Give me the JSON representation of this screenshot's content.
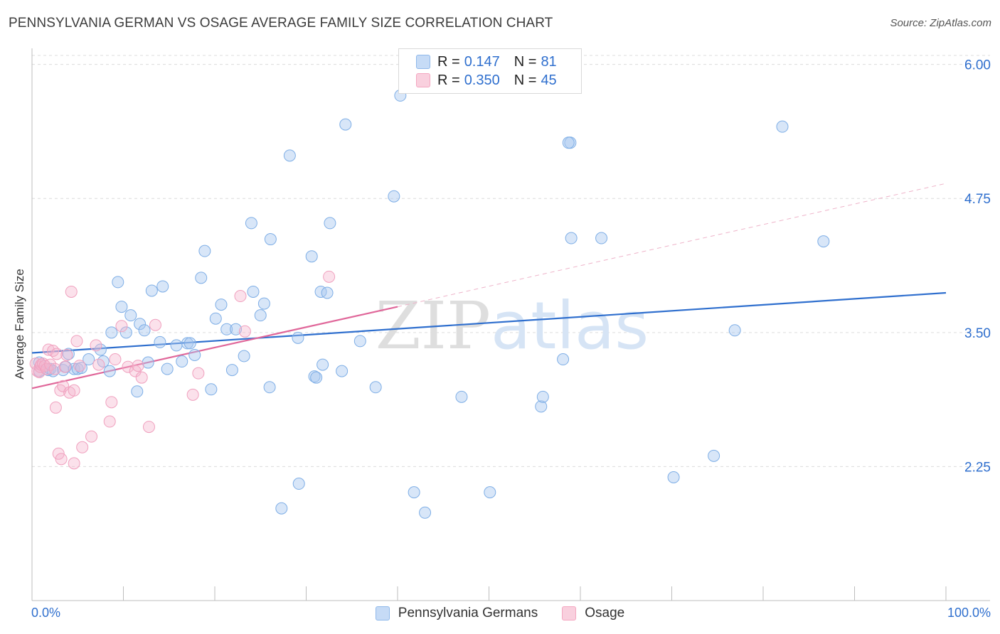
{
  "title": "PENNSYLVANIA GERMAN VS OSAGE AVERAGE FAMILY SIZE CORRELATION CHART",
  "source": "Source: ZipAtlas.com",
  "watermark": "ZIPatlas",
  "legend": {
    "series1": {
      "r_label": "R =",
      "r_value": "0.147",
      "n_label": "N =",
      "n_value": "81"
    },
    "series2": {
      "r_label": "R =",
      "r_value": "0.350",
      "n_label": "N =",
      "n_value": "45"
    }
  },
  "colors": {
    "blue": "#8fb8ea",
    "blue_line": "#2f6fce",
    "pink": "#f4a6c0",
    "pink_line": "#e0679a",
    "axis_text": "#2f6fce"
  },
  "chart_data": {
    "type": "scatter",
    "title": "PENNSYLVANIA GERMAN VS OSAGE AVERAGE FAMILY SIZE CORRELATION CHART",
    "xlabel": "",
    "ylabel": "Average Family Size",
    "xlim": [
      0,
      100
    ],
    "ylim": [
      1.0,
      6.15
    ],
    "x_tick_labels": [
      "0.0%",
      "100.0%"
    ],
    "y_ticks": [
      2.25,
      3.5,
      4.75,
      6.0
    ],
    "y_tick_labels": [
      "2.25",
      "3.50",
      "4.75",
      "6.00"
    ],
    "legend_position": "bottom",
    "series": [
      {
        "name": "Pennsylvania Germans",
        "color": "#8fb8ea",
        "points": [
          [
            0.8,
            3.22
          ],
          [
            0.8,
            3.14
          ],
          [
            1.8,
            3.15
          ],
          [
            2.0,
            3.16
          ],
          [
            2.3,
            3.14
          ],
          [
            3.4,
            3.15
          ],
          [
            3.7,
            3.18
          ],
          [
            4.0,
            3.3
          ],
          [
            4.6,
            3.16
          ],
          [
            5.0,
            3.16
          ],
          [
            5.4,
            3.17
          ],
          [
            6.2,
            3.25
          ],
          [
            7.5,
            3.34
          ],
          [
            7.8,
            3.23
          ],
          [
            8.5,
            3.14
          ],
          [
            8.7,
            3.5
          ],
          [
            9.4,
            3.97
          ],
          [
            9.8,
            3.74
          ],
          [
            10.3,
            3.5
          ],
          [
            10.8,
            3.66
          ],
          [
            11.5,
            2.95
          ],
          [
            11.8,
            3.58
          ],
          [
            12.3,
            3.52
          ],
          [
            12.7,
            3.22
          ],
          [
            13.1,
            3.89
          ],
          [
            14.0,
            3.41
          ],
          [
            14.3,
            3.93
          ],
          [
            14.8,
            3.16
          ],
          [
            15.8,
            3.38
          ],
          [
            16.4,
            3.23
          ],
          [
            17.0,
            3.4
          ],
          [
            17.3,
            3.4
          ],
          [
            17.8,
            3.29
          ],
          [
            18.5,
            4.01
          ],
          [
            18.9,
            4.26
          ],
          [
            19.6,
            2.97
          ],
          [
            20.1,
            3.63
          ],
          [
            20.7,
            3.76
          ],
          [
            21.3,
            3.53
          ],
          [
            21.9,
            3.15
          ],
          [
            22.3,
            3.53
          ],
          [
            23.2,
            3.28
          ],
          [
            24.0,
            4.52
          ],
          [
            24.2,
            3.88
          ],
          [
            25.0,
            3.66
          ],
          [
            25.4,
            3.77
          ],
          [
            26.1,
            4.37
          ],
          [
            26.0,
            2.99
          ],
          [
            27.3,
            1.86
          ],
          [
            28.2,
            5.15
          ],
          [
            29.1,
            3.45
          ],
          [
            29.2,
            2.09
          ],
          [
            30.6,
            4.21
          ],
          [
            30.9,
            3.09
          ],
          [
            31.1,
            3.08
          ],
          [
            31.6,
            3.88
          ],
          [
            31.8,
            3.2
          ],
          [
            32.3,
            3.87
          ],
          [
            32.6,
            4.52
          ],
          [
            33.9,
            3.14
          ],
          [
            34.3,
            5.44
          ],
          [
            35.9,
            3.42
          ],
          [
            37.6,
            2.99
          ],
          [
            39.6,
            4.77
          ],
          [
            40.3,
            5.71
          ],
          [
            41.8,
            2.01
          ],
          [
            43.0,
            1.82
          ],
          [
            47.0,
            2.9
          ],
          [
            50.1,
            2.01
          ],
          [
            55.7,
            2.81
          ],
          [
            55.9,
            2.9
          ],
          [
            58.1,
            3.25
          ],
          [
            58.9,
            5.27
          ],
          [
            58.7,
            5.27
          ],
          [
            59.0,
            4.38
          ],
          [
            62.3,
            4.38
          ],
          [
            70.2,
            2.15
          ],
          [
            74.6,
            2.35
          ],
          [
            76.9,
            3.52
          ],
          [
            82.1,
            5.42
          ],
          [
            86.6,
            4.35
          ]
        ],
        "trend": {
          "x": [
            0,
            100
          ],
          "y": [
            3.31,
            3.87
          ]
        }
      },
      {
        "name": "Osage",
        "color": "#f4a6c0",
        "points": [
          [
            0.4,
            3.21
          ],
          [
            0.6,
            3.14
          ],
          [
            0.8,
            3.13
          ],
          [
            0.9,
            3.18
          ],
          [
            1.0,
            3.2
          ],
          [
            1.2,
            3.21
          ],
          [
            1.4,
            3.19
          ],
          [
            1.6,
            3.16
          ],
          [
            1.8,
            3.34
          ],
          [
            2.0,
            3.2
          ],
          [
            2.3,
            3.33
          ],
          [
            2.5,
            3.16
          ],
          [
            2.7,
            3.3
          ],
          [
            2.6,
            2.8
          ],
          [
            2.9,
            2.37
          ],
          [
            3.1,
            2.96
          ],
          [
            3.2,
            2.32
          ],
          [
            3.4,
            3.0
          ],
          [
            3.6,
            3.18
          ],
          [
            3.8,
            3.29
          ],
          [
            4.1,
            2.94
          ],
          [
            4.3,
            3.88
          ],
          [
            4.6,
            2.28
          ],
          [
            4.6,
            2.96
          ],
          [
            4.9,
            3.42
          ],
          [
            5.2,
            3.19
          ],
          [
            5.5,
            2.43
          ],
          [
            6.5,
            2.53
          ],
          [
            7.0,
            3.38
          ],
          [
            7.3,
            3.2
          ],
          [
            8.5,
            2.67
          ],
          [
            8.7,
            2.85
          ],
          [
            9.1,
            3.25
          ],
          [
            9.8,
            3.56
          ],
          [
            10.5,
            3.18
          ],
          [
            11.3,
            3.14
          ],
          [
            11.6,
            3.19
          ],
          [
            12.0,
            3.08
          ],
          [
            12.8,
            2.62
          ],
          [
            13.5,
            3.57
          ],
          [
            17.6,
            2.92
          ],
          [
            18.2,
            3.12
          ],
          [
            22.8,
            3.84
          ],
          [
            23.3,
            3.51
          ],
          [
            32.5,
            4.02
          ]
        ],
        "trend": {
          "x": [
            0,
            40
          ],
          "y": [
            2.98,
            3.74
          ]
        },
        "trend_extension": {
          "x": [
            40,
            100
          ],
          "y": [
            3.74,
            4.89
          ]
        }
      }
    ]
  }
}
